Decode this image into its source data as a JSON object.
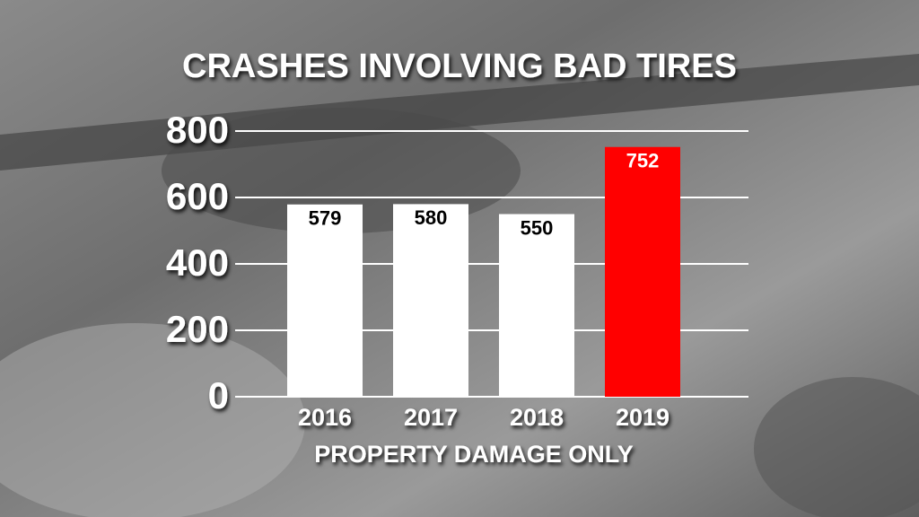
{
  "chart_data": {
    "type": "bar",
    "title": "CRASHES INVOLVING BAD TIRES",
    "x_label": "PROPERTY DAMAGE ONLY",
    "categories": [
      "2016",
      "2017",
      "2018",
      "2019"
    ],
    "values": [
      579,
      580,
      550,
      752
    ],
    "colors": [
      "#ffffff",
      "#ffffff",
      "#ffffff",
      "#ff0000"
    ],
    "ylim": [
      0,
      800
    ],
    "yticks": [
      0,
      200,
      400,
      600,
      800
    ],
    "grid": true
  }
}
